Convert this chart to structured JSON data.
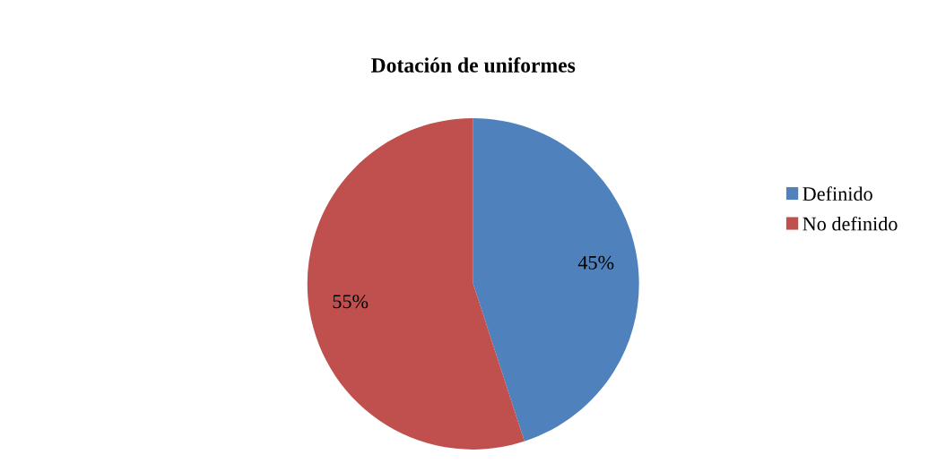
{
  "chart_data": {
    "type": "pie",
    "title": "Dotación de uniformes",
    "categories": [
      "Definido",
      "No definido"
    ],
    "values": [
      45,
      55
    ],
    "colors": [
      "#4f81bd",
      "#c0504d"
    ],
    "value_labels": [
      "45%",
      "55%"
    ],
    "legend": "right"
  }
}
